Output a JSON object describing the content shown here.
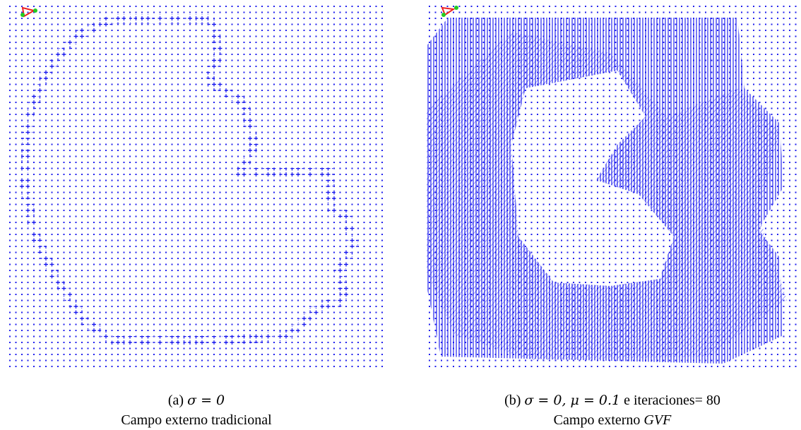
{
  "figure": {
    "panels": [
      {
        "label": "(a)",
        "formula": "σ = 0",
        "caption": "Campo externo tradicional"
      },
      {
        "label": "(b)",
        "formula": "σ = 0, μ = 0.1",
        "suffix": "e iteraciones= 80",
        "caption_prefix": "Campo externo",
        "caption_em": "GVF"
      }
    ]
  }
}
